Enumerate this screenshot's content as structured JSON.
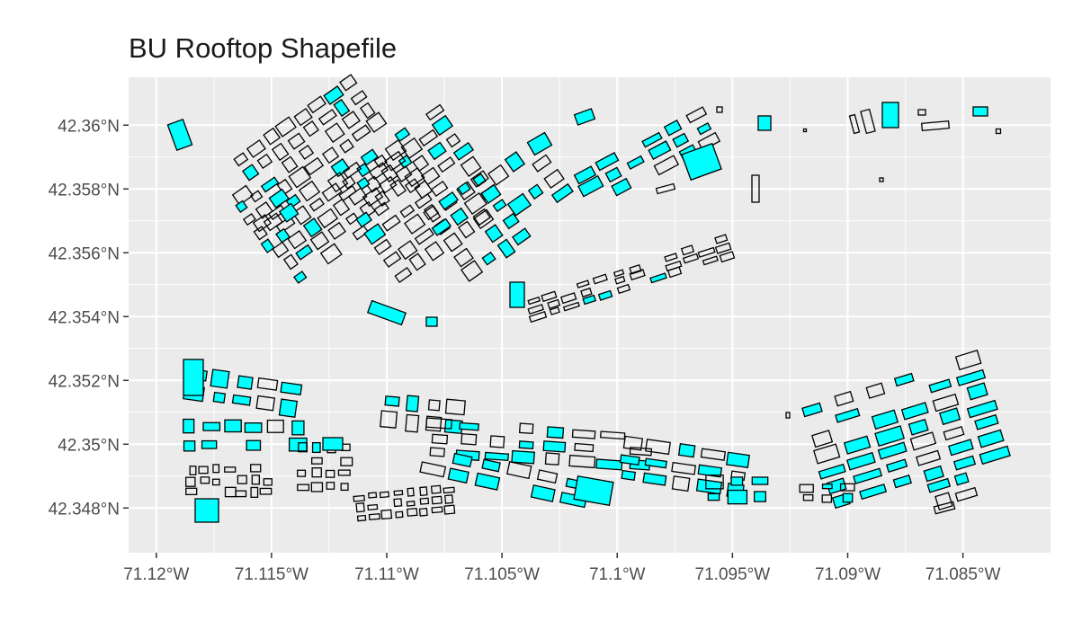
{
  "title": "BU Rooftop Shapefile",
  "colors": {
    "panel_background": "#ebebeb",
    "grid_line": "#ffffff",
    "building_fill": "#00ffff",
    "building_stroke": "#000000",
    "tick_label": "#4d4d4d"
  },
  "chart_data": {
    "type": "map",
    "title": "BU Rooftop Shapefile",
    "xlabel": "",
    "ylabel": "",
    "x_ticks": [
      {
        "value": -71.12,
        "label": "71.12°W"
      },
      {
        "value": -71.115,
        "label": "71.115°W"
      },
      {
        "value": -71.11,
        "label": "71.11°W"
      },
      {
        "value": -71.105,
        "label": "71.105°W"
      },
      {
        "value": -71.1,
        "label": "71.1°W"
      },
      {
        "value": -71.095,
        "label": "71.095°W"
      },
      {
        "value": -71.09,
        "label": "71.09°W"
      },
      {
        "value": -71.085,
        "label": "71.085°W"
      }
    ],
    "y_ticks": [
      {
        "value": 42.348,
        "label": "42.348°N"
      },
      {
        "value": 42.35,
        "label": "42.35°N"
      },
      {
        "value": 42.352,
        "label": "42.352°N"
      },
      {
        "value": 42.354,
        "label": "42.354°N"
      },
      {
        "value": 42.356,
        "label": "42.356°N"
      },
      {
        "value": 42.358,
        "label": "42.358°N"
      },
      {
        "value": 42.36,
        "label": "42.36°N"
      }
    ],
    "xlim": [
      -71.1212,
      -71.0812
    ],
    "ylim": [
      42.3466,
      42.3615
    ],
    "grid": true,
    "legend": "none"
  }
}
